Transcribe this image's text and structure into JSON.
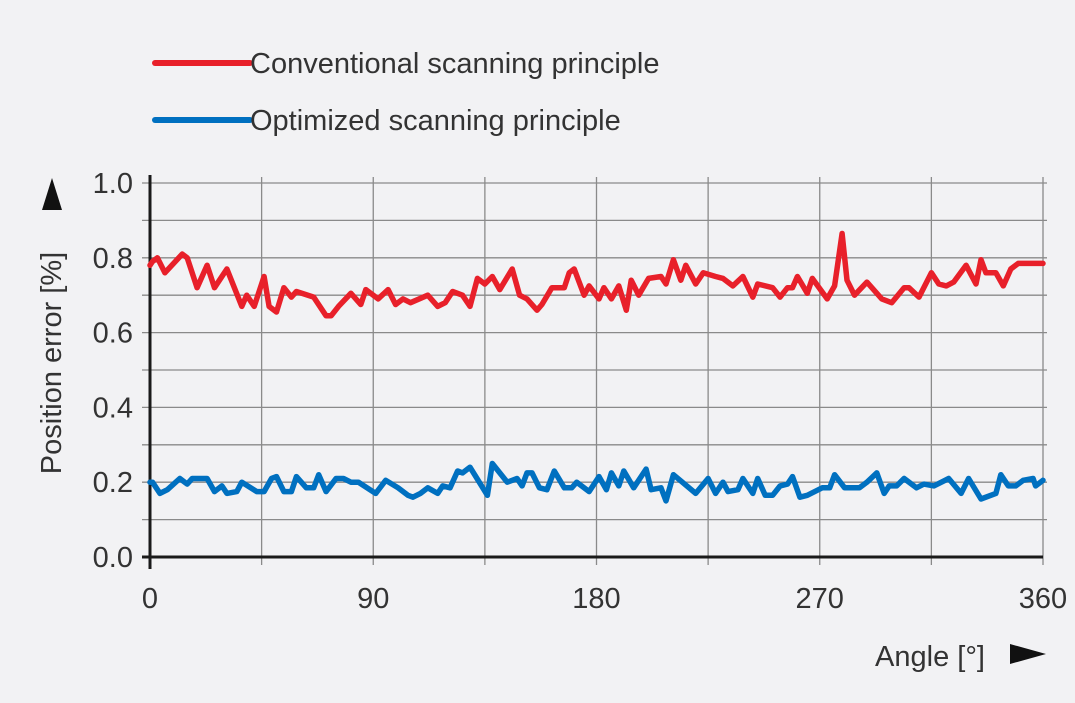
{
  "chart_data": {
    "type": "line",
    "xlabel": "Angle [°]",
    "ylabel": "Position error [%]",
    "xlim": [
      0,
      360
    ],
    "ylim": [
      0,
      1.0
    ],
    "xticks": [
      "0",
      "90",
      "180",
      "270",
      "360"
    ],
    "xtick_values": [
      0,
      90,
      180,
      270,
      360
    ],
    "yticks": [
      "0.0",
      "0.2",
      "0.4",
      "0.6",
      "0.8",
      "1.0"
    ],
    "ytick_values": [
      0,
      0.2,
      0.4,
      0.6,
      0.8,
      1.0
    ],
    "x_grid_step": 45,
    "y_grid_step": 0.1,
    "grid": true,
    "legend_placement": "top-left, above plot",
    "series": [
      {
        "name": "Conventional scanning principle",
        "color": "#e8202a",
        "x": [
          0,
          1,
          3,
          6,
          13,
          15,
          19,
          23,
          26,
          31,
          37,
          39,
          42,
          46,
          48,
          51,
          54,
          57,
          59,
          66,
          71,
          73,
          76,
          81,
          85,
          87,
          92,
          96,
          99,
          102,
          105,
          112,
          116,
          119,
          122,
          126,
          129,
          132,
          135,
          138,
          141,
          146,
          149,
          152,
          156,
          158,
          162,
          167,
          169,
          171,
          175,
          177,
          181,
          183,
          186,
          189,
          192,
          194,
          197,
          201,
          206,
          208,
          211,
          214,
          216,
          220,
          223,
          228,
          231,
          235,
          239,
          243,
          245,
          251,
          254,
          257,
          259,
          261,
          265,
          267,
          273,
          276,
          279,
          281,
          284,
          289,
          295,
          299,
          304,
          306,
          310,
          315,
          318,
          321,
          324,
          329,
          333,
          335,
          337,
          341,
          344,
          347,
          350,
          360
        ],
        "values": [
          0.78,
          0.79,
          0.8,
          0.76,
          0.81,
          0.8,
          0.72,
          0.78,
          0.72,
          0.77,
          0.67,
          0.7,
          0.67,
          0.75,
          0.67,
          0.655,
          0.72,
          0.695,
          0.71,
          0.695,
          0.645,
          0.645,
          0.67,
          0.705,
          0.675,
          0.715,
          0.69,
          0.715,
          0.675,
          0.69,
          0.68,
          0.7,
          0.67,
          0.68,
          0.71,
          0.7,
          0.67,
          0.745,
          0.73,
          0.75,
          0.715,
          0.77,
          0.7,
          0.69,
          0.66,
          0.675,
          0.72,
          0.72,
          0.76,
          0.77,
          0.7,
          0.725,
          0.69,
          0.72,
          0.69,
          0.725,
          0.66,
          0.74,
          0.7,
          0.745,
          0.75,
          0.73,
          0.795,
          0.74,
          0.78,
          0.73,
          0.76,
          0.75,
          0.745,
          0.725,
          0.75,
          0.695,
          0.73,
          0.72,
          0.695,
          0.72,
          0.72,
          0.75,
          0.705,
          0.745,
          0.69,
          0.725,
          0.865,
          0.74,
          0.7,
          0.735,
          0.69,
          0.68,
          0.72,
          0.72,
          0.695,
          0.76,
          0.73,
          0.725,
          0.735,
          0.78,
          0.73,
          0.795,
          0.76,
          0.76,
          0.725,
          0.77,
          0.785,
          0.785
        ]
      },
      {
        "name": "Optimized scanning principle",
        "color": "#0070c0",
        "x": [
          0,
          1,
          4,
          7,
          12,
          15,
          17,
          23,
          26,
          29,
          31,
          35,
          37,
          43,
          46,
          49,
          51,
          54,
          57,
          59,
          63,
          66,
          68,
          71,
          75,
          78,
          81,
          84,
          91,
          95,
          100,
          104,
          106,
          109,
          112,
          116,
          118,
          121,
          124,
          126,
          129,
          136,
          138,
          144,
          148,
          150,
          152,
          154,
          157,
          160,
          163,
          167,
          170,
          172,
          177,
          181,
          184,
          186,
          189,
          191,
          195,
          200,
          202,
          206,
          208,
          211,
          220,
          225,
          228,
          231,
          233,
          237,
          239,
          243,
          245,
          248,
          251,
          254,
          257,
          259,
          262,
          265,
          271,
          274,
          276,
          280,
          286,
          289,
          293,
          296,
          298,
          301,
          304,
          309,
          312,
          316,
          322,
          327,
          330,
          335,
          341,
          343,
          346,
          349,
          352,
          356,
          357,
          360
        ],
        "values": [
          0.2,
          0.2,
          0.17,
          0.18,
          0.21,
          0.195,
          0.21,
          0.21,
          0.175,
          0.19,
          0.17,
          0.175,
          0.2,
          0.175,
          0.175,
          0.21,
          0.215,
          0.175,
          0.175,
          0.215,
          0.185,
          0.185,
          0.22,
          0.175,
          0.21,
          0.21,
          0.2,
          0.2,
          0.17,
          0.205,
          0.185,
          0.165,
          0.16,
          0.17,
          0.185,
          0.17,
          0.19,
          0.185,
          0.23,
          0.225,
          0.24,
          0.165,
          0.25,
          0.2,
          0.21,
          0.19,
          0.225,
          0.225,
          0.185,
          0.18,
          0.23,
          0.185,
          0.185,
          0.2,
          0.175,
          0.215,
          0.18,
          0.225,
          0.19,
          0.23,
          0.185,
          0.235,
          0.18,
          0.185,
          0.15,
          0.22,
          0.17,
          0.21,
          0.17,
          0.2,
          0.175,
          0.18,
          0.21,
          0.17,
          0.21,
          0.165,
          0.165,
          0.19,
          0.195,
          0.215,
          0.16,
          0.165,
          0.185,
          0.185,
          0.22,
          0.185,
          0.185,
          0.2,
          0.225,
          0.17,
          0.19,
          0.19,
          0.21,
          0.185,
          0.195,
          0.19,
          0.21,
          0.17,
          0.21,
          0.155,
          0.17,
          0.22,
          0.19,
          0.19,
          0.205,
          0.21,
          0.19,
          0.205
        ]
      }
    ]
  }
}
